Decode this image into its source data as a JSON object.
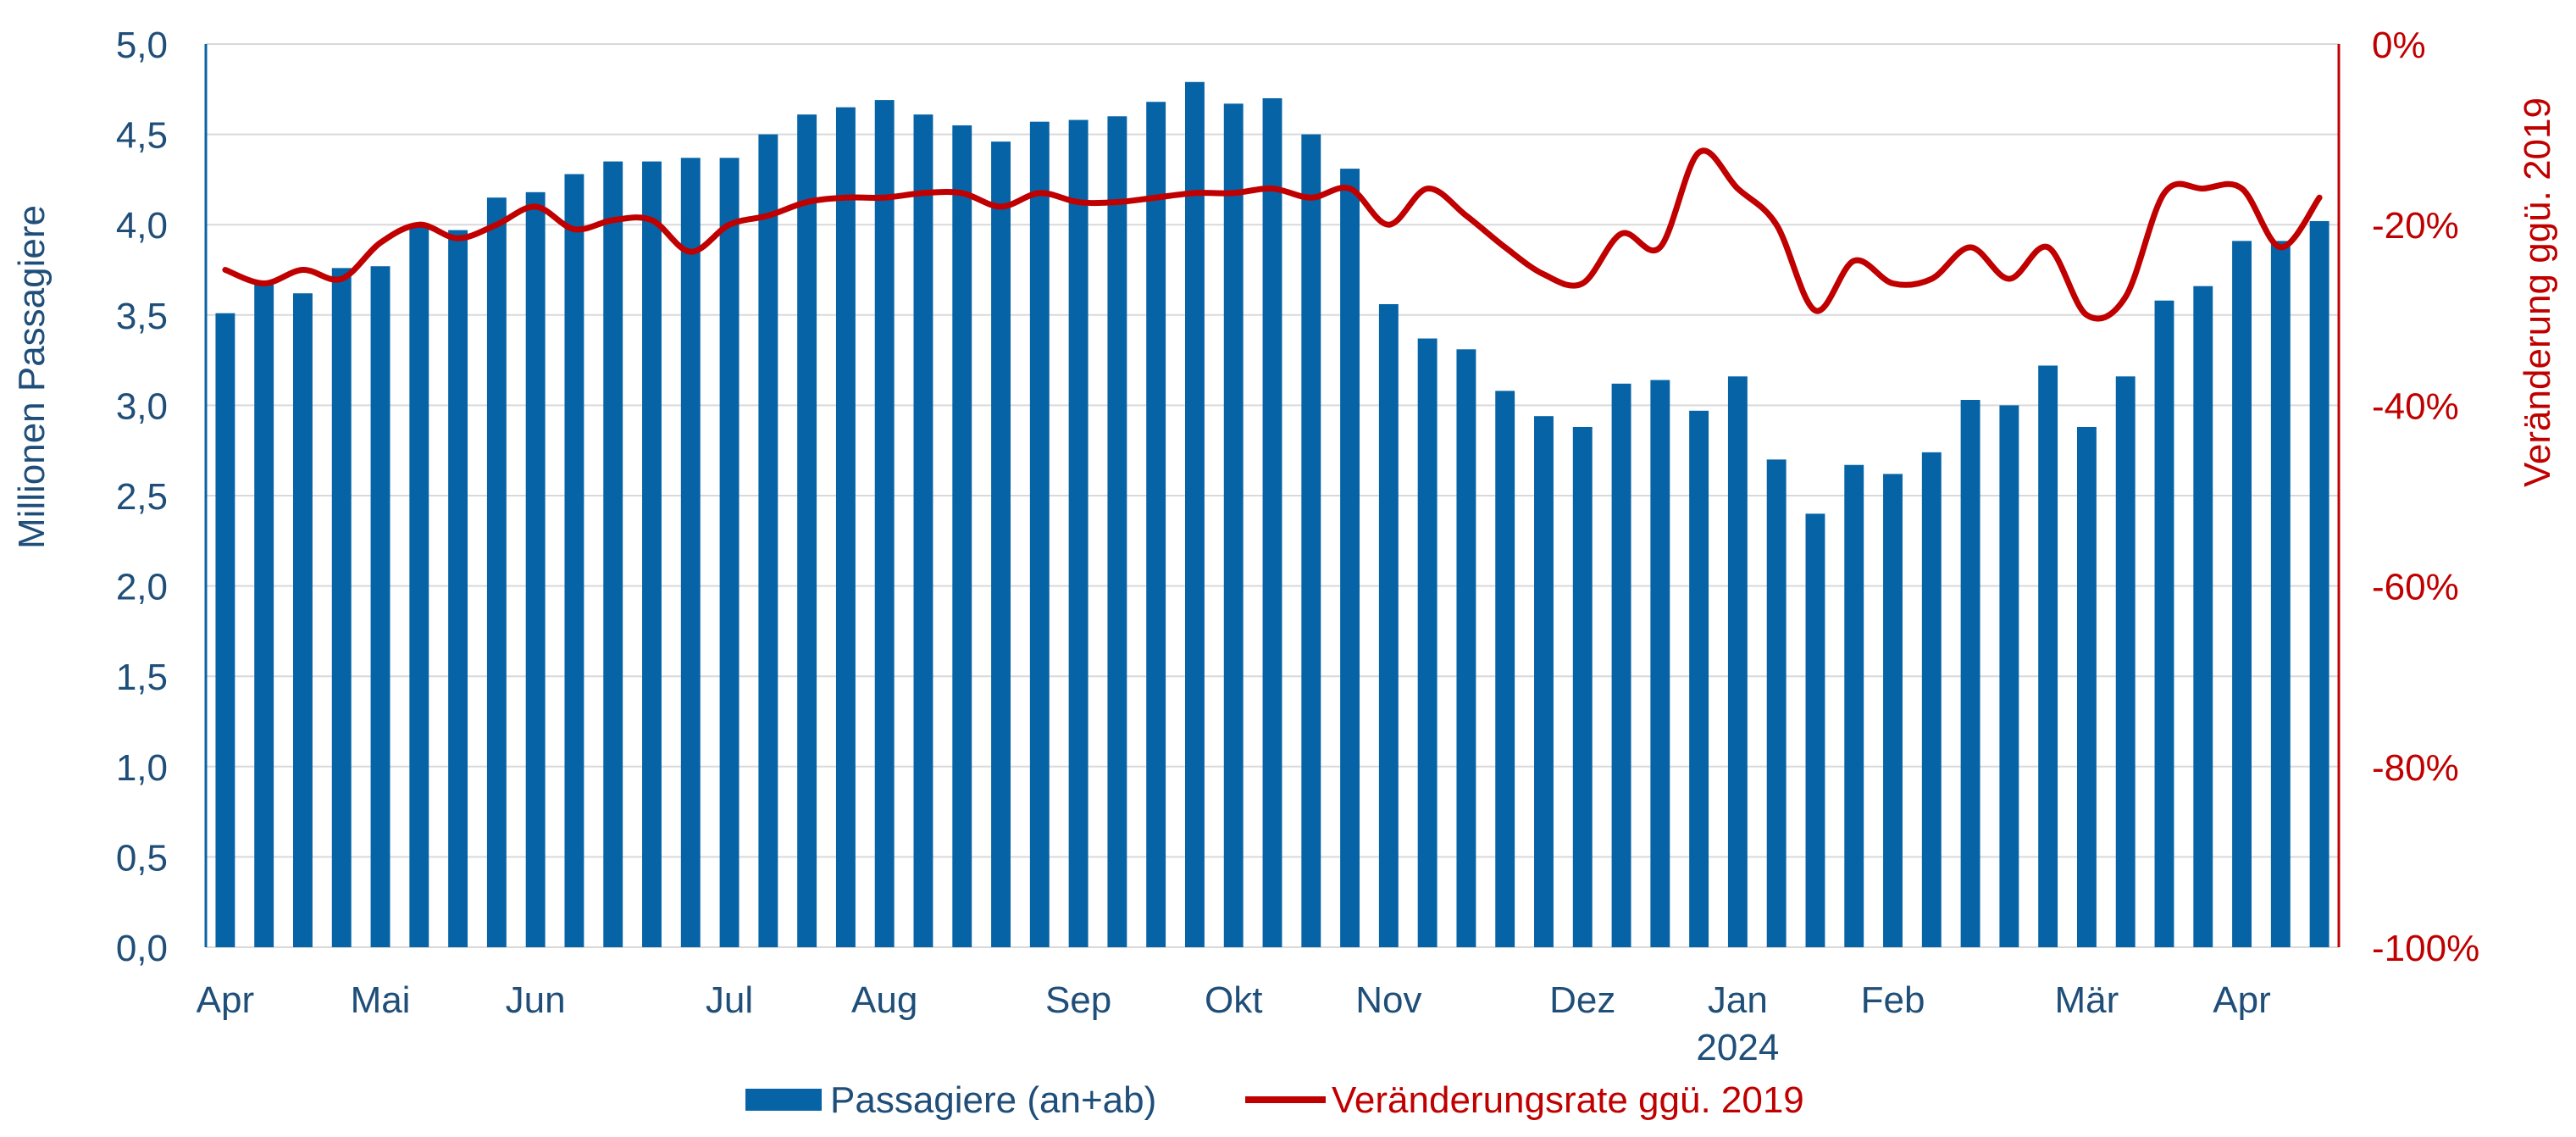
{
  "colors": {
    "bars": "#0563A6",
    "line": "#C00000",
    "left_axis_text": "#1F4E79",
    "right_axis_text": "#C00000",
    "grid": "#D9D9D9"
  },
  "chart_data": {
    "type": "bar+line",
    "title": "",
    "y_left": {
      "label": "Millionen Passagiere",
      "range": [
        0,
        5
      ],
      "ticks": [
        0,
        0.5,
        1,
        1.5,
        2,
        2.5,
        3,
        3.5,
        4,
        4.5,
        5
      ],
      "tick_labels": [
        "0,0",
        "0,5",
        "1,0",
        "1,5",
        "2,0",
        "2,5",
        "3,0",
        "3,5",
        "4,0",
        "4,5",
        "5,0"
      ]
    },
    "y_right": {
      "label": "Veränderung ggü. 2019",
      "range": [
        -100,
        0
      ],
      "ticks": [
        0,
        -20,
        -40,
        -60,
        -80,
        -100
      ],
      "tick_labels": [
        "0%",
        "-20%",
        "-40%",
        "-60%",
        "-80%",
        "-100%"
      ]
    },
    "x_axis": {
      "month_labels": [
        {
          "label": "Apr",
          "week": 0
        },
        {
          "label": "Mai",
          "week": 4
        },
        {
          "label": "Jun",
          "week": 8
        },
        {
          "label": "Jul",
          "week": 13
        },
        {
          "label": "Aug",
          "week": 17
        },
        {
          "label": "Sep",
          "week": 22
        },
        {
          "label": "Okt",
          "week": 26
        },
        {
          "label": "Nov",
          "week": 30
        },
        {
          "label": "Dez",
          "week": 35
        },
        {
          "label": "Jan",
          "week": 39
        },
        {
          "label": "Feb",
          "week": 43
        },
        {
          "label": "Mär",
          "week": 48
        },
        {
          "label": "Apr",
          "week": 52
        }
      ],
      "year_label": {
        "label": "2024",
        "week": 39
      }
    },
    "grid": true,
    "legend_position": "bottom",
    "series": [
      {
        "name": "Passagiere (an+ab)",
        "type": "bar",
        "axis": "left",
        "values": [
          3.51,
          3.67,
          3.62,
          3.76,
          3.77,
          4.0,
          3.97,
          4.15,
          4.18,
          4.28,
          4.35,
          4.35,
          4.37,
          4.37,
          4.5,
          4.61,
          4.65,
          4.69,
          4.61,
          4.55,
          4.46,
          4.57,
          4.58,
          4.6,
          4.68,
          4.79,
          4.67,
          4.7,
          4.5,
          4.31,
          3.56,
          3.37,
          3.31,
          3.08,
          2.94,
          2.88,
          3.12,
          3.14,
          2.97,
          3.16,
          2.7,
          2.4,
          2.67,
          2.62,
          2.74,
          3.03,
          3.0,
          3.22,
          2.88,
          3.16,
          3.58,
          3.66,
          3.91,
          3.91,
          4.02
        ]
      },
      {
        "name": "Veränderungsrate ggü. 2019",
        "type": "line",
        "axis": "right",
        "values": [
          -25,
          -26.5,
          -25,
          -26,
          -22,
          -20,
          -21.5,
          -20,
          -18,
          -20.5,
          -19.5,
          -19.5,
          -23,
          -20,
          -19,
          -17.5,
          -17,
          -17,
          -16.5,
          -16.5,
          -18,
          -16.5,
          -17.5,
          -17.5,
          -17,
          -16.5,
          -16.5,
          -16,
          -17,
          -16,
          -20,
          -16,
          -19,
          -22.5,
          -25.5,
          -26.5,
          -21,
          -22.5,
          -12,
          -16,
          -20,
          -29.5,
          -24,
          -26.5,
          -26,
          -22.5,
          -26,
          -22.5,
          -30,
          -28,
          -16.5,
          -16,
          -16,
          -22.5,
          -17
        ]
      }
    ]
  }
}
